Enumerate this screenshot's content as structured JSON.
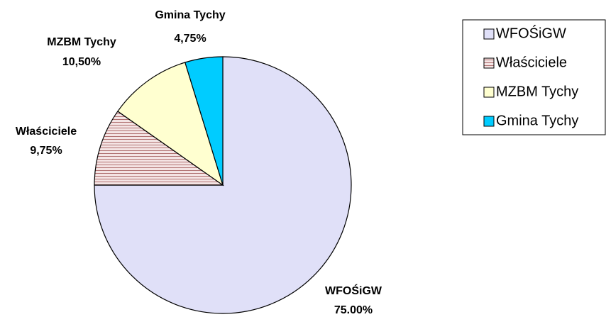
{
  "chart_data": {
    "type": "pie",
    "categories": [
      "WFOŚiGW",
      "Właściciele",
      "MZBM Tychy",
      "Gmina Tychy"
    ],
    "values": [
      75,
      9.75,
      10.5,
      4.75
    ],
    "value_labels": [
      "75.00%",
      "9,75%",
      "10,50%",
      "4,75%"
    ],
    "colors": [
      "#e0e0f8",
      "#f4d8d8",
      "#ffffd0",
      "#00ccff"
    ],
    "hatch": [
      false,
      true,
      false,
      false
    ],
    "legend": "right"
  }
}
